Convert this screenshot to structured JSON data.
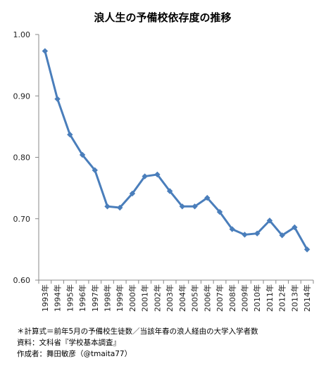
{
  "chart_data": {
    "type": "line",
    "title": "浪人生の予備校依存度の推移",
    "categories": [
      "1993年",
      "1994年",
      "1995年",
      "1996年",
      "1997年",
      "1998年",
      "1999年",
      "2000年",
      "2001年",
      "2002年",
      "2003年",
      "2004年",
      "2005年",
      "2006年",
      "2007年",
      "2008年",
      "2009年",
      "2010年",
      "2011年",
      "2012年",
      "2013年",
      "2014年"
    ],
    "series": [
      {
        "values": [
          0.973,
          0.895,
          0.837,
          0.804,
          0.779,
          0.72,
          0.718,
          0.741,
          0.769,
          0.772,
          0.745,
          0.72,
          0.72,
          0.734,
          0.711,
          0.683,
          0.674,
          0.676,
          0.697,
          0.673,
          0.686,
          0.65
        ],
        "color": "#4a7ebb"
      }
    ],
    "ylim": [
      0.6,
      1.0
    ],
    "yticks": [
      "0.60",
      "0.70",
      "0.80",
      "0.90",
      "1.00"
    ],
    "grid": false,
    "legend": "none"
  },
  "notes": {
    "formula": "＊計算式＝前年5月の予備校生徒数／当該年春の浪人経由の大学入学者数",
    "source": "資料：文科省『学校基本調査』",
    "author": "作成者：舞田敏彦（@tmaita77）"
  }
}
